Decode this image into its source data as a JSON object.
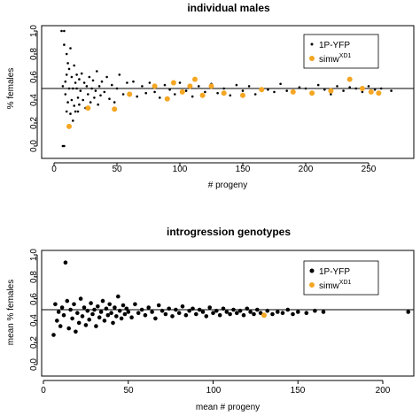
{
  "colors": {
    "points": "#000000",
    "highlight": "#f5a623",
    "axis": "#000000"
  },
  "chart_data": [
    {
      "type": "scatter",
      "title": "individual males",
      "xlabel": "# progeny",
      "ylabel": "% females",
      "xlim": [
        0,
        275
      ],
      "ylim": [
        0,
        1.05
      ],
      "xticks": [
        "0",
        "50",
        "100",
        "150",
        "200",
        "250"
      ],
      "yticks": [
        "0.0",
        "0.2",
        "0.4",
        "0.6",
        "0.8",
        "1.0"
      ],
      "hline": 0.5,
      "legend": {
        "position": "top-right",
        "entries": [
          "1P-YFP",
          "simw",
          "XD1"
        ]
      },
      "series": [
        {
          "name": "1P-YFP",
          "marker": "small-dot",
          "x": [
            6,
            7,
            7,
            8,
            8,
            8,
            9,
            9,
            10,
            10,
            10,
            11,
            11,
            12,
            12,
            12,
            13,
            13,
            14,
            14,
            15,
            15,
            16,
            16,
            17,
            17,
            18,
            18,
            19,
            19,
            20,
            20,
            21,
            22,
            23,
            24,
            25,
            26,
            27,
            28,
            29,
            30,
            31,
            32,
            33,
            34,
            35,
            36,
            37,
            38,
            40,
            42,
            44,
            46,
            48,
            50,
            52,
            55,
            58,
            60,
            63,
            66,
            70,
            73,
            76,
            80,
            84,
            88,
            92,
            96,
            100,
            105,
            110,
            115,
            120,
            125,
            130,
            135,
            140,
            145,
            150,
            155,
            160,
            165,
            170,
            175,
            180,
            185,
            190,
            195,
            200,
            205,
            210,
            215,
            220,
            225,
            230,
            235,
            240,
            245,
            250,
            255,
            260,
            268
          ],
          "y": [
            1.0,
            0.0,
            0.52,
            1.0,
            0.0,
            0.88,
            0.56,
            0.45,
            0.8,
            0.3,
            0.62,
            0.38,
            0.72,
            0.5,
            0.18,
            0.67,
            0.85,
            0.28,
            0.6,
            0.4,
            0.5,
            0.22,
            0.7,
            0.35,
            0.55,
            0.3,
            0.5,
            0.62,
            0.42,
            0.3,
            0.58,
            0.36,
            0.48,
            0.63,
            0.4,
            0.55,
            0.33,
            0.52,
            0.45,
            0.6,
            0.38,
            0.5,
            0.57,
            0.42,
            0.48,
            0.65,
            0.36,
            0.52,
            0.44,
            0.56,
            0.47,
            0.6,
            0.41,
            0.53,
            0.38,
            0.5,
            0.62,
            0.45,
            0.55,
            0.44,
            0.56,
            0.43,
            0.52,
            0.46,
            0.55,
            0.47,
            0.42,
            0.53,
            0.49,
            0.45,
            0.55,
            0.48,
            0.43,
            0.52,
            0.47,
            0.54,
            0.46,
            0.5,
            0.44,
            0.53,
            0.48,
            0.52,
            0.45,
            0.5,
            0.49,
            0.47,
            0.54,
            0.48,
            0.46,
            0.51,
            0.5,
            0.47,
            0.53,
            0.49,
            0.45,
            0.52,
            0.48,
            0.51,
            0.5,
            0.47,
            0.52,
            0.49,
            0.5,
            0.48
          ]
        },
        {
          "name": "simwXD1",
          "marker": "orange-dot",
          "x": [
            12,
            27,
            48,
            60,
            80,
            90,
            95,
            102,
            108,
            112,
            118,
            125,
            135,
            150,
            165,
            190,
            205,
            220,
            235,
            245,
            252,
            258
          ],
          "y": [
            0.17,
            0.33,
            0.32,
            0.45,
            0.52,
            0.41,
            0.55,
            0.47,
            0.52,
            0.58,
            0.44,
            0.52,
            0.46,
            0.44,
            0.49,
            0.47,
            0.46,
            0.48,
            0.58,
            0.5,
            0.47,
            0.46
          ]
        }
      ]
    },
    {
      "type": "scatter",
      "title": "introgression genotypes",
      "xlabel": "mean # progeny",
      "ylabel": "mean % females",
      "xlim": [
        0,
        225
      ],
      "ylim": [
        0,
        1.05
      ],
      "xticks": [
        "0",
        "50",
        "100",
        "150",
        "200"
      ],
      "yticks": [
        "0.0",
        "0.2",
        "0.4",
        "0.6",
        "0.8",
        "1.0"
      ],
      "hline": 0.5,
      "legend": {
        "position": "top-right",
        "entries": [
          "1P-YFP",
          "simw",
          "XD1"
        ]
      },
      "series": [
        {
          "name": "1P-YFP",
          "marker": "dot",
          "x": [
            6,
            7,
            8,
            9,
            10,
            11,
            12,
            13,
            14,
            15,
            16,
            17,
            18,
            19,
            20,
            21,
            22,
            23,
            24,
            25,
            26,
            27,
            28,
            29,
            30,
            31,
            32,
            33,
            34,
            35,
            36,
            37,
            38,
            39,
            40,
            41,
            42,
            43,
            44,
            45,
            46,
            47,
            48,
            49,
            50,
            52,
            54,
            56,
            58,
            60,
            62,
            64,
            66,
            68,
            70,
            72,
            74,
            76,
            78,
            80,
            82,
            84,
            86,
            88,
            90,
            92,
            94,
            96,
            98,
            100,
            102,
            104,
            106,
            108,
            110,
            112,
            114,
            116,
            118,
            120,
            122,
            124,
            126,
            128,
            132,
            135,
            138,
            141,
            144,
            147,
            150,
            155,
            160,
            165,
            215
          ],
          "y": [
            0.27,
            0.55,
            0.4,
            0.48,
            0.35,
            0.52,
            0.45,
            0.93,
            0.58,
            0.33,
            0.5,
            0.42,
            0.55,
            0.3,
            0.47,
            0.38,
            0.6,
            0.44,
            0.52,
            0.36,
            0.49,
            0.41,
            0.56,
            0.46,
            0.5,
            0.35,
            0.53,
            0.43,
            0.48,
            0.58,
            0.4,
            0.51,
            0.45,
            0.55,
            0.47,
            0.38,
            0.52,
            0.44,
            0.62,
            0.49,
            0.42,
            0.54,
            0.46,
            0.51,
            0.48,
            0.43,
            0.55,
            0.47,
            0.5,
            0.45,
            0.52,
            0.48,
            0.42,
            0.54,
            0.49,
            0.46,
            0.51,
            0.44,
            0.5,
            0.47,
            0.53,
            0.45,
            0.49,
            0.51,
            0.46,
            0.5,
            0.48,
            0.44,
            0.52,
            0.47,
            0.49,
            0.45,
            0.51,
            0.48,
            0.46,
            0.5,
            0.47,
            0.49,
            0.45,
            0.51,
            0.48,
            0.46,
            0.5,
            0.47,
            0.49,
            0.46,
            0.48,
            0.47,
            0.5,
            0.46,
            0.48,
            0.47,
            0.49,
            0.48,
            0.48
          ]
        },
        {
          "name": "simwXD1",
          "marker": "orange-dot",
          "x": [
            130
          ],
          "y": [
            0.45
          ]
        }
      ]
    }
  ]
}
